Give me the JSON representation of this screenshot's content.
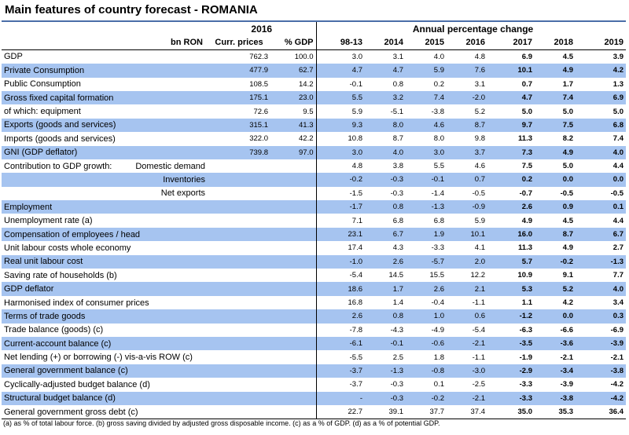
{
  "title": "Main features of country forecast - ROMANIA",
  "header": {
    "year": "2016",
    "apc": "Annual percentage change",
    "unit": "bn RON",
    "curr": "Curr. prices",
    "gdp": "% GDP",
    "years": [
      "98-13",
      "2014",
      "2015",
      "2016",
      "2017",
      "2018",
      "2019"
    ]
  },
  "rows": [
    {
      "label": "GDP",
      "sub": "",
      "c": "762.3",
      "g": "100.0",
      "v": [
        "3.0",
        "3.1",
        "4.0",
        "4.8",
        "6.9",
        "4.5",
        "3.9"
      ],
      "blue": false
    },
    {
      "label": "Private Consumption",
      "sub": "",
      "c": "477.9",
      "g": "62.7",
      "v": [
        "4.7",
        "4.7",
        "5.9",
        "7.6",
        "10.1",
        "4.9",
        "4.2"
      ],
      "blue": true
    },
    {
      "label": "Public Consumption",
      "sub": "",
      "c": "108.5",
      "g": "14.2",
      "v": [
        "-0.1",
        "0.8",
        "0.2",
        "3.1",
        "0.7",
        "1.7",
        "1.3"
      ],
      "blue": false
    },
    {
      "label": "Gross fixed capital formation",
      "sub": "",
      "c": "175.1",
      "g": "23.0",
      "v": [
        "5.5",
        "3.2",
        "7.4",
        "-2.0",
        "4.7",
        "7.4",
        "6.9"
      ],
      "blue": true
    },
    {
      "label": "of which: equipment",
      "sub": "",
      "c": "72.6",
      "g": "9.5",
      "v": [
        "5.9",
        "-5.1",
        "-3.8",
        "5.2",
        "5.0",
        "5.0",
        "5.0"
      ],
      "blue": false
    },
    {
      "label": "Exports (goods and services)",
      "sub": "",
      "c": "315.1",
      "g": "41.3",
      "v": [
        "9.3",
        "8.0",
        "4.6",
        "8.7",
        "9.7",
        "7.5",
        "6.8"
      ],
      "blue": true
    },
    {
      "label": "Imports (goods and services)",
      "sub": "",
      "c": "322.0",
      "g": "42.2",
      "v": [
        "10.8",
        "8.7",
        "8.0",
        "9.8",
        "11.3",
        "8.2",
        "7.4"
      ],
      "blue": false
    },
    {
      "label": "GNI (GDP deflator)",
      "sub": "",
      "c": "739.8",
      "g": "97.0",
      "v": [
        "3.0",
        "4.0",
        "3.0",
        "3.7",
        "7.3",
        "4.9",
        "4.0"
      ],
      "blue": true
    },
    {
      "label": "Contribution to GDP growth:",
      "sub": "Domestic demand",
      "c": "",
      "g": "",
      "v": [
        "4.8",
        "3.8",
        "5.5",
        "4.6",
        "7.5",
        "5.0",
        "4.4"
      ],
      "blue": false
    },
    {
      "label": "",
      "sub": "Inventories",
      "c": "",
      "g": "",
      "v": [
        "-0.2",
        "-0.3",
        "-0.1",
        "0.7",
        "0.2",
        "0.0",
        "0.0"
      ],
      "blue": true
    },
    {
      "label": "",
      "sub": "Net exports",
      "c": "",
      "g": "",
      "v": [
        "-1.5",
        "-0.3",
        "-1.4",
        "-0.5",
        "-0.7",
        "-0.5",
        "-0.5"
      ],
      "blue": false
    },
    {
      "label": "Employment",
      "sub": "",
      "c": "",
      "g": "",
      "v": [
        "-1.7",
        "0.8",
        "-1.3",
        "-0.9",
        "2.6",
        "0.9",
        "0.1"
      ],
      "blue": true
    },
    {
      "label": "Unemployment rate (a)",
      "sub": "",
      "c": "",
      "g": "",
      "v": [
        "7.1",
        "6.8",
        "6.8",
        "5.9",
        "4.9",
        "4.5",
        "4.4"
      ],
      "blue": false
    },
    {
      "label": "Compensation of employees / head",
      "sub": "",
      "c": "",
      "g": "",
      "v": [
        "23.1",
        "6.7",
        "1.9",
        "10.1",
        "16.0",
        "8.7",
        "6.7"
      ],
      "blue": true
    },
    {
      "label": "Unit labour costs whole economy",
      "sub": "",
      "c": "",
      "g": "",
      "v": [
        "17.4",
        "4.3",
        "-3.3",
        "4.1",
        "11.3",
        "4.9",
        "2.7"
      ],
      "blue": false
    },
    {
      "label": "Real unit labour cost",
      "sub": "",
      "c": "",
      "g": "",
      "v": [
        "-1.0",
        "2.6",
        "-5.7",
        "2.0",
        "5.7",
        "-0.2",
        "-1.3"
      ],
      "blue": true
    },
    {
      "label": "Saving rate of households (b)",
      "sub": "",
      "c": "",
      "g": "",
      "v": [
        "-5.4",
        "14.5",
        "15.5",
        "12.2",
        "10.9",
        "9.1",
        "7.7"
      ],
      "blue": false
    },
    {
      "label": "GDP deflator",
      "sub": "",
      "c": "",
      "g": "",
      "v": [
        "18.6",
        "1.7",
        "2.6",
        "2.1",
        "5.3",
        "5.2",
        "4.0"
      ],
      "blue": true
    },
    {
      "label": "Harmonised index of consumer prices",
      "sub": "",
      "c": "",
      "g": "",
      "v": [
        "16.8",
        "1.4",
        "-0.4",
        "-1.1",
        "1.1",
        "4.2",
        "3.4"
      ],
      "blue": false
    },
    {
      "label": "Terms of trade goods",
      "sub": "",
      "c": "",
      "g": "",
      "v": [
        "2.6",
        "0.8",
        "1.0",
        "0.6",
        "-1.2",
        "0.0",
        "0.3"
      ],
      "blue": true
    },
    {
      "label": "Trade balance (goods) (c)",
      "sub": "",
      "c": "",
      "g": "",
      "v": [
        "-7.8",
        "-4.3",
        "-4.9",
        "-5.4",
        "-6.3",
        "-6.6",
        "-6.9"
      ],
      "blue": false
    },
    {
      "label": "Current-account balance (c)",
      "sub": "",
      "c": "",
      "g": "",
      "v": [
        "-6.1",
        "-0.1",
        "-0.6",
        "-2.1",
        "-3.5",
        "-3.6",
        "-3.9"
      ],
      "blue": true
    },
    {
      "label": "Net lending (+) or borrowing (-) vis-a-vis ROW (c)",
      "sub": "",
      "c": "",
      "g": "",
      "v": [
        "-5.5",
        "2.5",
        "1.8",
        "-1.1",
        "-1.9",
        "-2.1",
        "-2.1"
      ],
      "blue": false
    },
    {
      "label": "General government balance (c)",
      "sub": "",
      "c": "",
      "g": "",
      "v": [
        "-3.7",
        "-1.3",
        "-0.8",
        "-3.0",
        "-2.9",
        "-3.4",
        "-3.8"
      ],
      "blue": true
    },
    {
      "label": "Cyclically-adjusted budget balance (d)",
      "sub": "",
      "c": "",
      "g": "",
      "v": [
        "-3.7",
        "-0.3",
        "0.1",
        "-2.5",
        "-3.3",
        "-3.9",
        "-4.2"
      ],
      "blue": false
    },
    {
      "label": "Structural budget balance (d)",
      "sub": "",
      "c": "",
      "g": "",
      "v": [
        "-",
        "-0.3",
        "-0.2",
        "-2.1",
        "-3.3",
        "-3.8",
        "-4.2"
      ],
      "blue": true
    },
    {
      "label": "General government gross debt (c)",
      "sub": "",
      "c": "",
      "g": "",
      "v": [
        "22.7",
        "39.1",
        "37.7",
        "37.4",
        "35.0",
        "35.3",
        "36.4"
      ],
      "blue": false
    }
  ],
  "footnote": "(a) as % of total labour force. (b) gross saving divided by adjusted gross disposable income. (c) as a % of GDP. (d) as a % of potential GDP."
}
